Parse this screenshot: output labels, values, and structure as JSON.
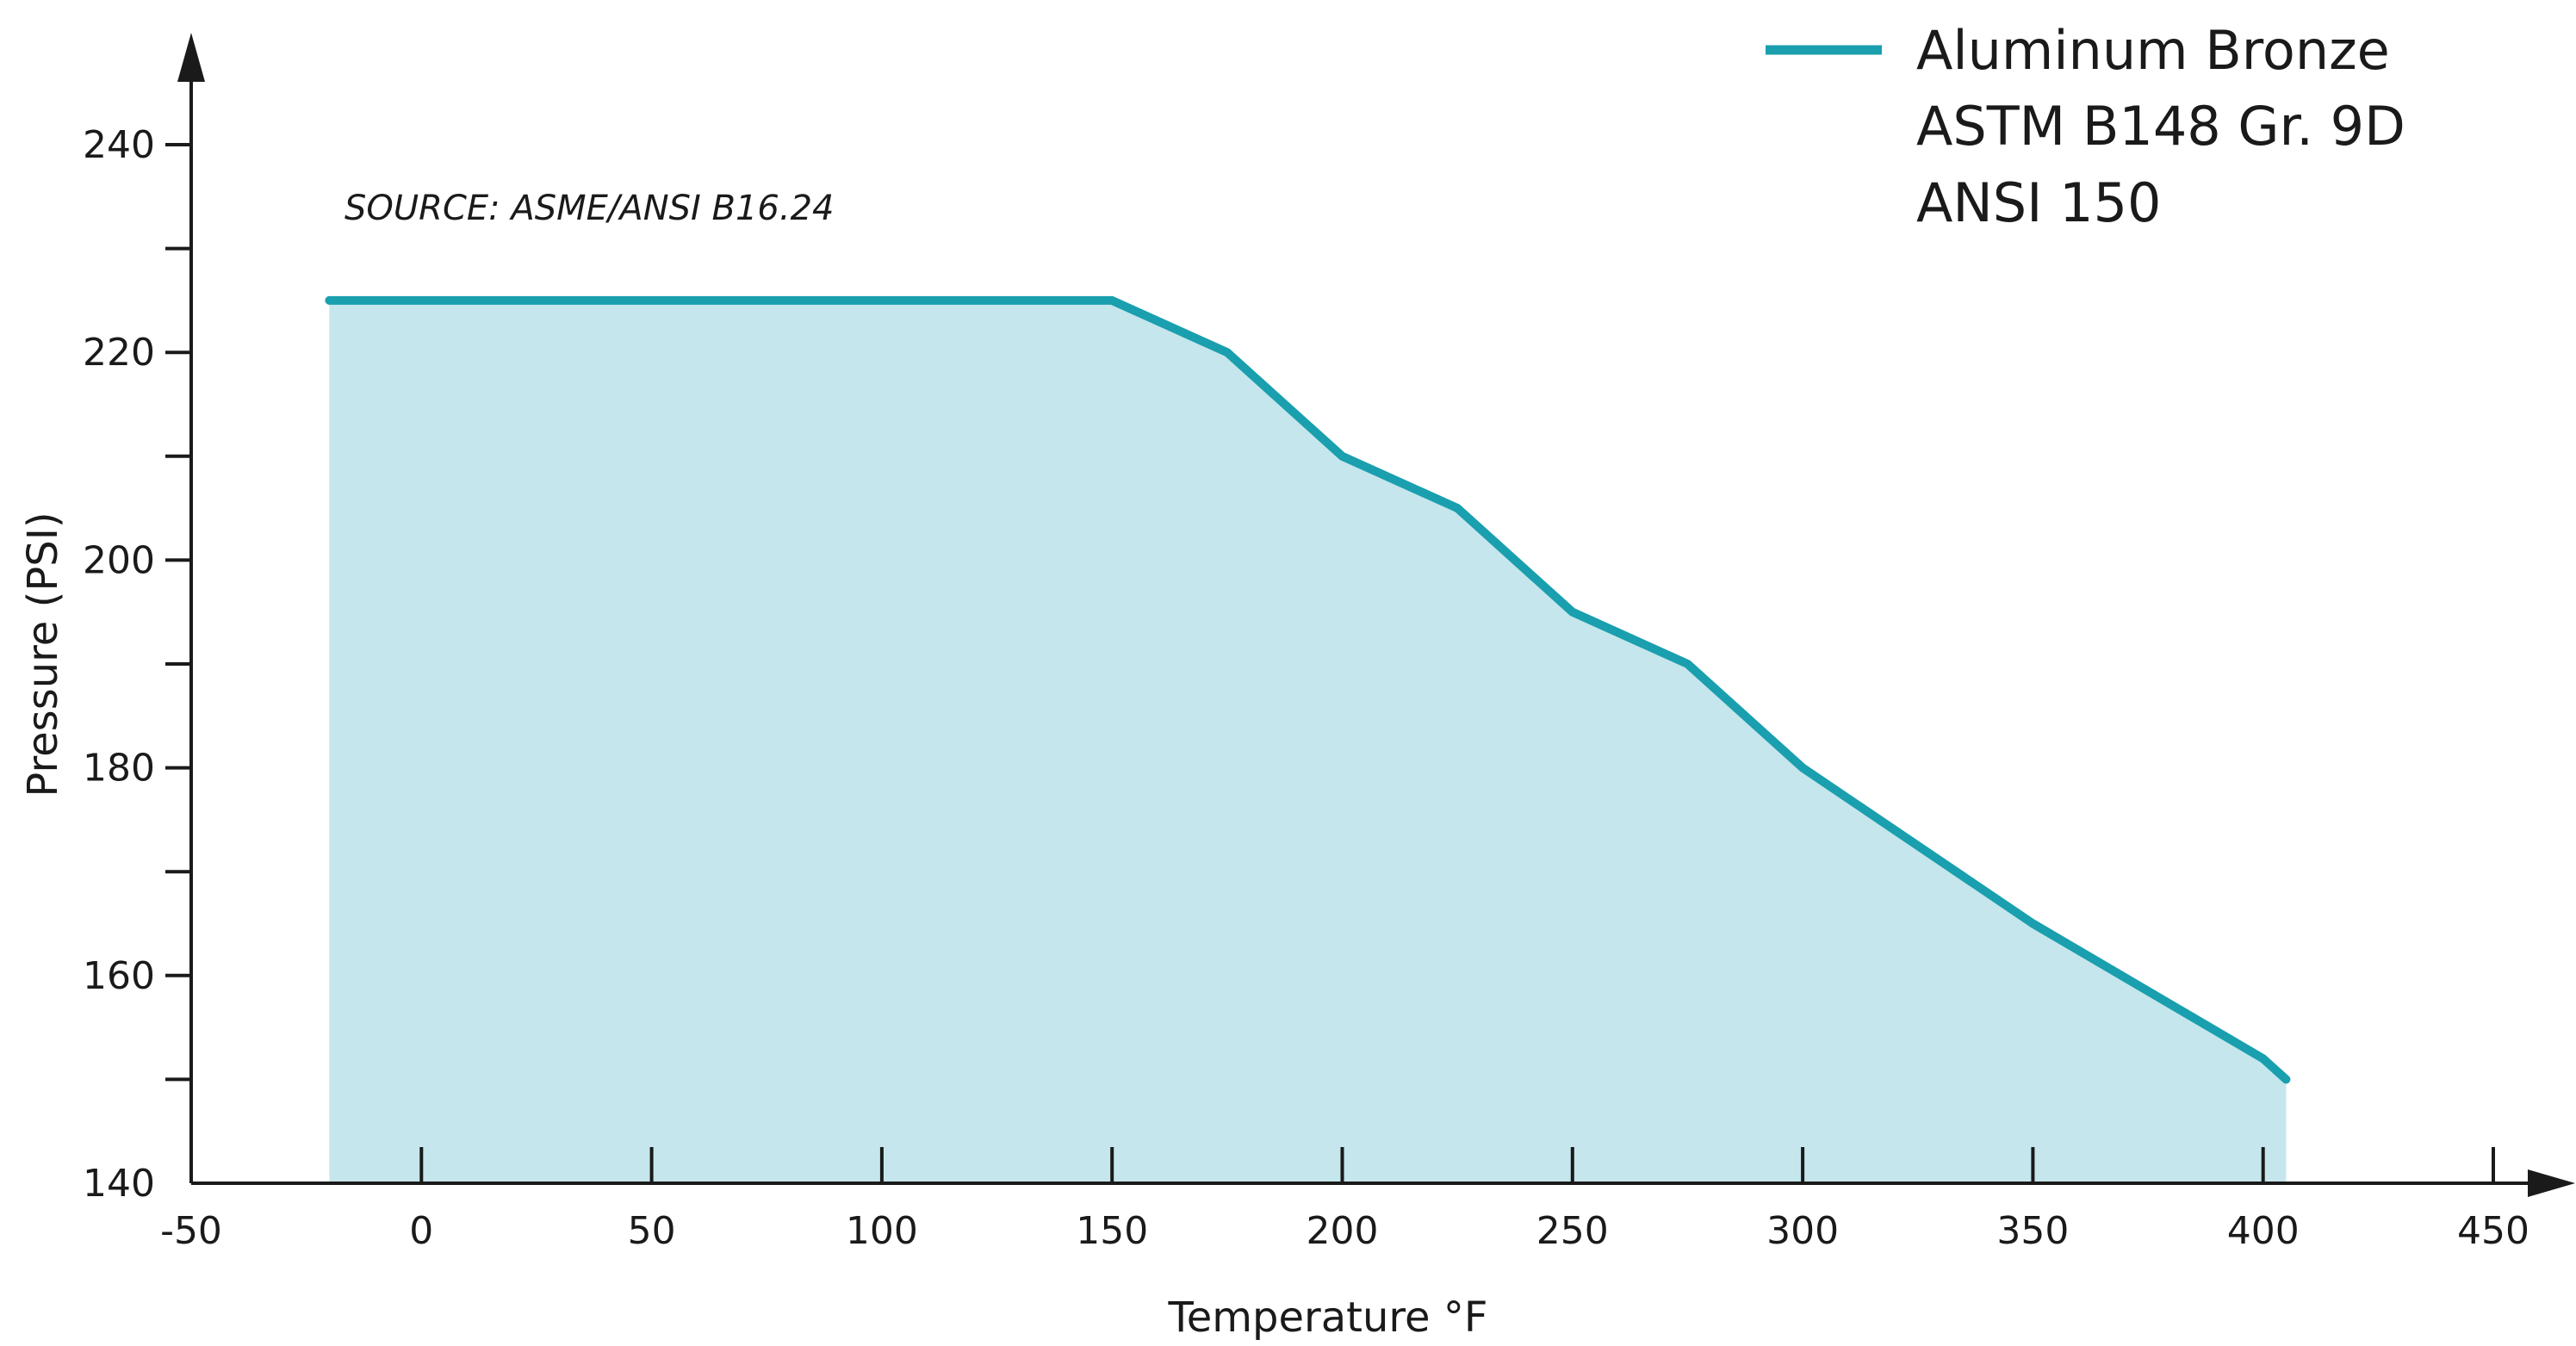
{
  "chart_data": {
    "type": "area",
    "title": "",
    "xlabel": "Temperature °F",
    "ylabel": "Pressure (PSI)",
    "xlim": [
      -50,
      450
    ],
    "ylim": [
      140,
      245
    ],
    "xticks": [
      -50,
      0,
      50,
      100,
      150,
      200,
      250,
      300,
      350,
      400,
      450
    ],
    "yticks": [
      140,
      160,
      180,
      200,
      220,
      240
    ],
    "yticks_minor": [
      150,
      170,
      190,
      210,
      230
    ],
    "xtick_labels": [
      "-50",
      "0",
      "50",
      "100",
      "150",
      "200",
      "250",
      "300",
      "350",
      "400",
      "450"
    ],
    "ytick_labels": [
      "140",
      "160",
      "180",
      "200",
      "220",
      "240"
    ],
    "annotation": "SOURCE: ASME/ANSI B16.24",
    "legend": {
      "position": "top-right",
      "lines": [
        "Aluminum Bronze",
        "ASTM B148 Gr. 9D",
        "ANSI 150"
      ]
    },
    "grid": false,
    "colors": {
      "line": "#1a9faf",
      "fill": "#c5e6ec",
      "axis": "#1a1a1a"
    },
    "series": [
      {
        "name": "Aluminum Bronze",
        "x": [
          -20,
          150,
          175,
          200,
          225,
          250,
          275,
          300,
          350,
          400,
          405
        ],
        "y": [
          225,
          225,
          220,
          210,
          205,
          195,
          190,
          180,
          165,
          152,
          150
        ]
      }
    ]
  }
}
